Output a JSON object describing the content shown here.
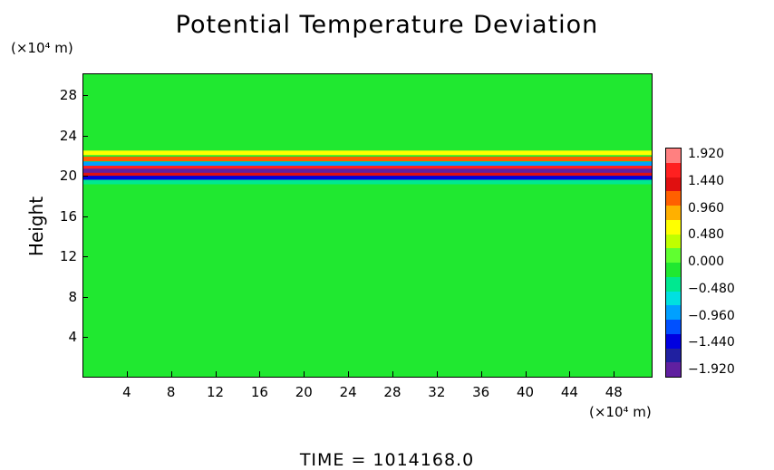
{
  "chart_data": {
    "type": "heatmap",
    "title": "Potential Temperature Deviation",
    "ylabel": "Height",
    "y_unit": "(×10⁴ m)",
    "x_unit": "(×10⁴ m)",
    "xlim": [
      0,
      51.5
    ],
    "ylim": [
      0,
      30.2
    ],
    "x_ticks": [
      4,
      8,
      12,
      16,
      20,
      24,
      28,
      32,
      36,
      40,
      44,
      48
    ],
    "y_ticks": [
      4,
      8,
      12,
      16,
      20,
      24,
      28
    ],
    "colorbar_labels": [
      "1.920",
      "1.440",
      "0.960",
      "0.480",
      "0.000",
      "−0.480",
      "−0.960",
      "−1.440",
      "−1.920"
    ],
    "colorbar_range": [
      -1.92,
      1.92
    ],
    "colorbar_colors": [
      "#ff8080",
      "#ff2020",
      "#e01010",
      "#ff6000",
      "#ffb000",
      "#ffff00",
      "#c0ff00",
      "#60ff30",
      "#20e830",
      "#00e890",
      "#00e0e0",
      "#00a0ff",
      "#0050ff",
      "#0000e0",
      "#2020a0",
      "#6020a0"
    ],
    "background_value": 0.0,
    "bands": [
      {
        "y": 22.4,
        "value": 0.5
      },
      {
        "y": 21.8,
        "value": 1.0
      },
      {
        "y": 21.3,
        "value": -0.9
      },
      {
        "y": 20.9,
        "value": 1.6
      },
      {
        "y": 20.6,
        "value": -1.7
      },
      {
        "y": 20.2,
        "value": 1.4
      },
      {
        "y": 19.9,
        "value": -1.2
      },
      {
        "y": 19.5,
        "value": -0.4
      }
    ],
    "footer": "TIME  =  1014168.0"
  }
}
